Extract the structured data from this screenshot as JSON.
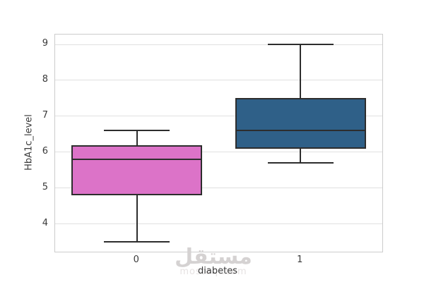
{
  "figure": {
    "background": "#ffffff",
    "watermark": {
      "arabic": "مستقل",
      "latin": "mostaql.com"
    }
  },
  "chart_data": {
    "type": "boxplot",
    "title": "",
    "xlabel": "diabetes",
    "ylabel": "HbA1c_level",
    "categories": [
      "0",
      "1"
    ],
    "y_ticks": [
      4,
      5,
      6,
      7,
      8,
      9
    ],
    "ylim": [
      3.225,
      9.275
    ],
    "grid": "horizontal-only",
    "legend": "none",
    "series": [
      {
        "category": "0",
        "whisker_low": 3.5,
        "q1": 4.8,
        "median": 5.8,
        "q3": 6.2,
        "whisker_high": 6.6,
        "fill_color": "#dc73c8"
      },
      {
        "category": "1",
        "whisker_low": 5.7,
        "q1": 6.1,
        "median": 6.6,
        "q3": 7.5,
        "whisker_high": 9.0,
        "fill_color": "#2f6088"
      }
    ],
    "box_width_fraction": 0.8,
    "cap_width_fraction": 0.4,
    "line_color": "#2d2d2d",
    "grid_color": "#e0e0e0",
    "spine_color": "#cccccc",
    "text_color": "#3a3a3a"
  }
}
